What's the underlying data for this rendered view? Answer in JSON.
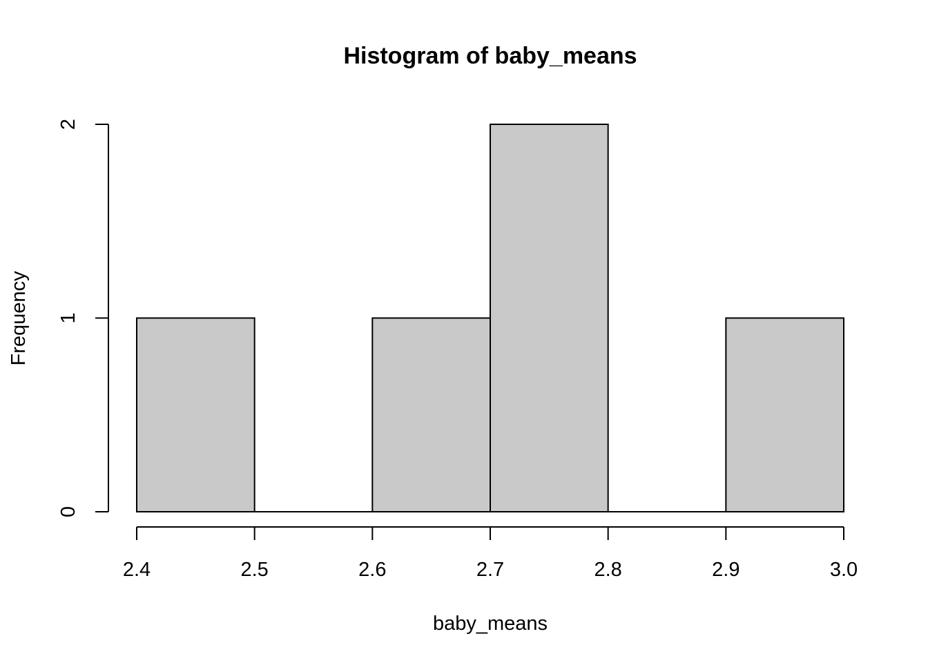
{
  "chart_data": {
    "type": "bar",
    "title": "Histogram of baby_means",
    "xlabel": "baby_means",
    "ylabel": "Frequency",
    "bins": [
      {
        "start": 2.4,
        "end": 2.5,
        "count": 1
      },
      {
        "start": 2.5,
        "end": 2.6,
        "count": 0
      },
      {
        "start": 2.6,
        "end": 2.7,
        "count": 1
      },
      {
        "start": 2.7,
        "end": 2.8,
        "count": 2
      },
      {
        "start": 2.8,
        "end": 2.9,
        "count": 0
      },
      {
        "start": 2.9,
        "end": 3.0,
        "count": 1
      }
    ],
    "xlim": [
      2.4,
      3.0
    ],
    "ylim": [
      0,
      2
    ],
    "x_ticks": [
      "2.4",
      "2.5",
      "2.6",
      "2.7",
      "2.8",
      "2.9",
      "3.0"
    ],
    "y_ticks": [
      "0",
      "1",
      "2"
    ],
    "bar_fill": "#c9c9c9",
    "bar_stroke": "#000000",
    "grid": false,
    "legend": "none"
  }
}
